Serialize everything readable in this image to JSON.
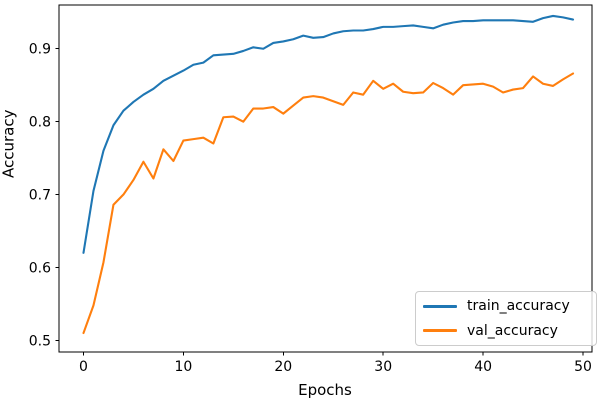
{
  "chart_data": {
    "type": "line",
    "title": "",
    "xlabel": "Epochs",
    "ylabel": "Accuracy",
    "x": [
      0,
      1,
      2,
      3,
      4,
      5,
      6,
      7,
      8,
      9,
      10,
      11,
      12,
      13,
      14,
      15,
      16,
      17,
      18,
      19,
      20,
      21,
      22,
      23,
      24,
      25,
      26,
      27,
      28,
      29,
      30,
      31,
      32,
      33,
      34,
      35,
      36,
      37,
      38,
      39,
      40,
      41,
      42,
      43,
      44,
      45,
      46,
      47,
      48,
      49
    ],
    "series": [
      {
        "name": "train_accuracy",
        "color": "#1f77b4",
        "values": [
          0.62,
          0.705,
          0.76,
          0.795,
          0.815,
          0.827,
          0.837,
          0.845,
          0.856,
          0.863,
          0.87,
          0.878,
          0.881,
          0.891,
          0.892,
          0.893,
          0.897,
          0.902,
          0.9,
          0.908,
          0.91,
          0.913,
          0.918,
          0.915,
          0.916,
          0.921,
          0.924,
          0.925,
          0.925,
          0.927,
          0.93,
          0.93,
          0.931,
          0.932,
          0.93,
          0.928,
          0.933,
          0.936,
          0.938,
          0.938,
          0.939,
          0.939,
          0.939,
          0.939,
          0.938,
          0.937,
          0.942,
          0.945,
          0.943,
          0.94
        ]
      },
      {
        "name": "val_accuracy",
        "color": "#ff7f0e",
        "values": [
          0.51,
          0.548,
          0.607,
          0.686,
          0.7,
          0.72,
          0.745,
          0.722,
          0.762,
          0.746,
          0.774,
          0.776,
          0.778,
          0.77,
          0.806,
          0.807,
          0.8,
          0.818,
          0.818,
          0.82,
          0.811,
          0.822,
          0.833,
          0.835,
          0.833,
          0.828,
          0.823,
          0.84,
          0.837,
          0.856,
          0.845,
          0.852,
          0.841,
          0.839,
          0.84,
          0.853,
          0.846,
          0.837,
          0.85,
          0.851,
          0.852,
          0.848,
          0.84,
          0.844,
          0.846,
          0.862,
          0.852,
          0.849,
          0.858,
          0.866
        ]
      }
    ],
    "xlim": [
      -2.45,
      50.9
    ],
    "ylim": [
      0.484,
      0.96
    ],
    "xticks": [
      0,
      10,
      20,
      30,
      40,
      50
    ],
    "xtick_labels": [
      "0",
      "10",
      "20",
      "30",
      "40",
      "50"
    ],
    "yticks": [
      0.5,
      0.6,
      0.7,
      0.8,
      0.9
    ],
    "ytick_labels": [
      "0.5",
      "0.6",
      "0.7",
      "0.8",
      "0.9"
    ],
    "grid": false,
    "legend": {
      "position": "lower right",
      "entries": [
        "train_accuracy",
        "val_accuracy"
      ]
    }
  },
  "colors": {
    "axes_edge": "#000000",
    "tick_label": "#000000",
    "legend_border": "#cccccc",
    "background": "#ffffff"
  }
}
